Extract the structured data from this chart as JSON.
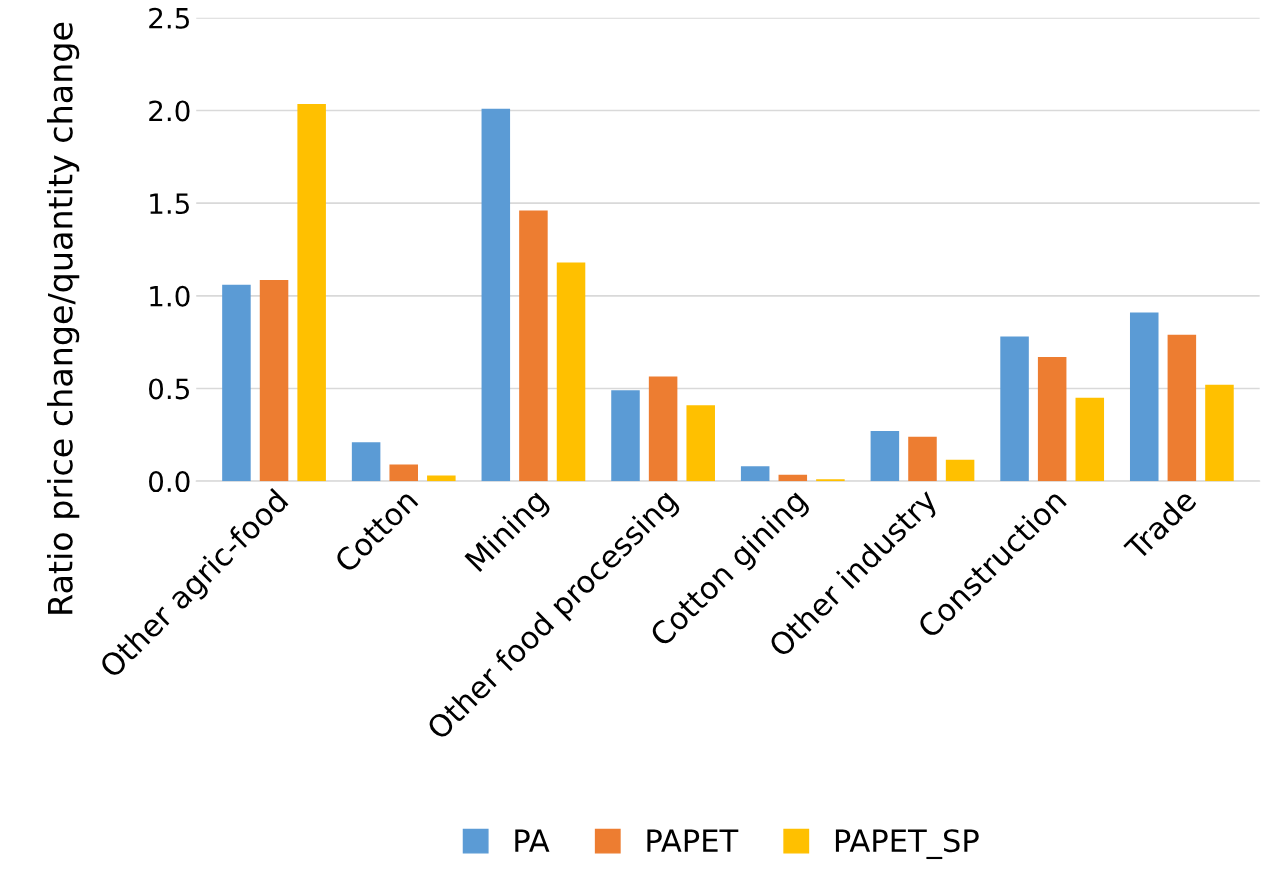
{
  "chart_data": {
    "type": "bar",
    "ylabel": "Ratio price change/quantity change",
    "categories": [
      "Other agric-food",
      "Cotton",
      "Mining",
      "Other food processing",
      "Cotton gining",
      "Other industry",
      "Construction",
      "Trade"
    ],
    "series": [
      {
        "name": "PA",
        "color": "#5b9bd5",
        "values": [
          1.06,
          0.21,
          2.01,
          0.49,
          0.08,
          0.27,
          0.78,
          0.91
        ]
      },
      {
        "name": "PAPET",
        "color": "#ed7d31",
        "values": [
          1.085,
          0.09,
          1.46,
          0.565,
          0.035,
          0.24,
          0.67,
          0.79
        ]
      },
      {
        "name": "PAPET_SP",
        "color": "#ffc000",
        "values": [
          2.035,
          0.03,
          1.18,
          0.41,
          0.01,
          0.115,
          0.45,
          0.52
        ]
      }
    ],
    "ylim": [
      0,
      2.5
    ],
    "yticks": [
      {
        "value": 0,
        "label": "0.0"
      },
      {
        "value": 0.5,
        "label": "0.5"
      },
      {
        "value": 1,
        "label": "1.0"
      },
      {
        "value": 1.5,
        "label": "1.5"
      },
      {
        "value": 2,
        "label": "2.0"
      },
      {
        "value": 2.5,
        "label": "2.5"
      }
    ],
    "grid": "y",
    "legend": "bottom"
  }
}
